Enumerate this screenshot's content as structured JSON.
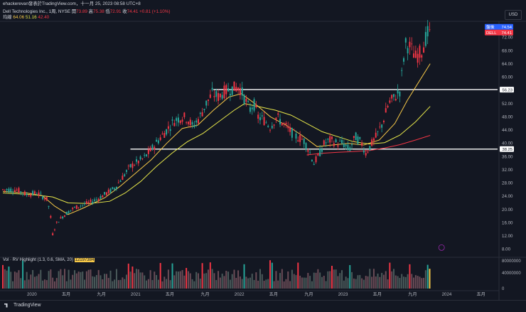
{
  "header": {
    "author_line": "ehackerevan發表於TradingView.com，十一月 25, 2023 08:58 UTC+8",
    "symbol_line": "Dell Technologies Inc., 1周, NYSE",
    "ohlc": {
      "open_label": "開",
      "open": "73.89",
      "high_label": "高",
      "high": "75.38",
      "low_label": "低",
      "low": "72.91",
      "close_label": "收",
      "close": "74.41",
      "change": "+0.81 (+1.10%)"
    },
    "ma_label": "均線",
    "ma_values": [
      "64.06",
      "51.16",
      "42.40"
    ]
  },
  "currency": "USD",
  "price_tags": [
    {
      "label": "盤後",
      "value": "74.54",
      "color": "#2962ff"
    },
    {
      "label": "DELL",
      "value": "74.41",
      "color": "#f23645"
    },
    {
      "value": "56.23",
      "color": "#ffffff"
    },
    {
      "value": "38.25",
      "color": "#ffffff"
    }
  ],
  "volume_label": {
    "text": "Vol · RV Highlight (1.3, 0.6, SMA, 20)",
    "value": "12197384"
  },
  "footer": {
    "logo_text": "TradingView"
  },
  "colors": {
    "up": "#f23645",
    "down": "#26a69a",
    "ma_fast": "#f7c948",
    "ma_mid": "#e8e84a",
    "ma_slow": "#f23645",
    "level_line": "#ffffff",
    "bg": "#131722"
  },
  "chart_data": {
    "type": "candlestick",
    "symbol": "DELL",
    "interval": "1W",
    "ylim": [
      6,
      76
    ],
    "y_ticks": [
      "72.00",
      "68.00",
      "64.00",
      "60.00",
      "56.00",
      "52.00",
      "48.00",
      "44.00",
      "40.00",
      "36.00",
      "32.00",
      "28.00",
      "24.00",
      "20.00",
      "16.00",
      "12.00",
      "8.00"
    ],
    "y_tick_values": [
      72,
      68,
      64,
      60,
      56,
      52,
      48,
      44,
      40,
      36,
      32,
      28,
      24,
      20,
      16,
      12,
      8
    ],
    "x_ticks": [
      "2020",
      "五月",
      "九月",
      "2021",
      "五月",
      "九月",
      "2022",
      "五月",
      "九月",
      "2023",
      "五月",
      "九月",
      "2024",
      "五月"
    ],
    "x_tick_years": [
      2020.0,
      2020.33,
      2020.67,
      2021.0,
      2021.33,
      2021.67,
      2022.0,
      2022.33,
      2022.67,
      2023.0,
      2023.33,
      2023.67,
      2024.0,
      2024.33
    ],
    "xlim": [
      2019.72,
      2024.49
    ],
    "horizontal_levels": [
      56.23,
      38.25
    ],
    "price_path": [
      [
        2019.72,
        26
      ],
      [
        2019.85,
        26
      ],
      [
        2019.95,
        24.5
      ],
      [
        2020.05,
        25
      ],
      [
        2020.1,
        24
      ],
      [
        2020.15,
        23
      ],
      [
        2020.18,
        18
      ],
      [
        2020.2,
        12.5
      ],
      [
        2020.24,
        16
      ],
      [
        2020.3,
        18
      ],
      [
        2020.38,
        20
      ],
      [
        2020.45,
        21
      ],
      [
        2020.55,
        22
      ],
      [
        2020.62,
        23
      ],
      [
        2020.7,
        24.5
      ],
      [
        2020.8,
        26.5
      ],
      [
        2020.88,
        30
      ],
      [
        2020.95,
        33
      ],
      [
        2021.0,
        34
      ],
      [
        2021.08,
        35.5
      ],
      [
        2021.15,
        38
      ],
      [
        2021.22,
        41
      ],
      [
        2021.3,
        44
      ],
      [
        2021.38,
        47
      ],
      [
        2021.45,
        48
      ],
      [
        2021.5,
        47.5
      ],
      [
        2021.55,
        45
      ],
      [
        2021.62,
        48
      ],
      [
        2021.68,
        52
      ],
      [
        2021.74,
        55
      ],
      [
        2021.8,
        54
      ],
      [
        2021.85,
        55.5
      ],
      [
        2021.92,
        56.5
      ],
      [
        2022.0,
        57
      ],
      [
        2022.03,
        55
      ],
      [
        2022.06,
        53
      ],
      [
        2022.1,
        50
      ],
      [
        2022.14,
        52
      ],
      [
        2022.18,
        48
      ],
      [
        2022.24,
        47
      ],
      [
        2022.3,
        45
      ],
      [
        2022.36,
        48
      ],
      [
        2022.42,
        46
      ],
      [
        2022.48,
        44
      ],
      [
        2022.55,
        42
      ],
      [
        2022.62,
        41
      ],
      [
        2022.67,
        38
      ],
      [
        2022.72,
        34
      ],
      [
        2022.76,
        36
      ],
      [
        2022.82,
        40
      ],
      [
        2022.88,
        41
      ],
      [
        2022.94,
        40
      ],
      [
        2023.0,
        40
      ],
      [
        2023.06,
        38
      ],
      [
        2023.12,
        42
      ],
      [
        2023.18,
        40
      ],
      [
        2023.22,
        37
      ],
      [
        2023.26,
        39
      ],
      [
        2023.32,
        42
      ],
      [
        2023.38,
        46
      ],
      [
        2023.44,
        52
      ],
      [
        2023.5,
        54
      ],
      [
        2023.55,
        56
      ],
      [
        2023.6,
        70
      ],
      [
        2023.65,
        69
      ],
      [
        2023.7,
        66
      ],
      [
        2023.76,
        68
      ],
      [
        2023.8,
        72
      ],
      [
        2023.84,
        74.41
      ]
    ],
    "ma_fast_path": [
      [
        2019.72,
        25.5
      ],
      [
        2019.95,
        25
      ],
      [
        2020.1,
        24.2
      ],
      [
        2020.22,
        21
      ],
      [
        2020.35,
        18.5
      ],
      [
        2020.5,
        20.5
      ],
      [
        2020.7,
        23.5
      ],
      [
        2020.85,
        27
      ],
      [
        2021.0,
        31
      ],
      [
        2021.15,
        35
      ],
      [
        2021.3,
        40
      ],
      [
        2021.45,
        44.5
      ],
      [
        2021.6,
        45.5
      ],
      [
        2021.75,
        50
      ],
      [
        2021.9,
        54
      ],
      [
        2022.02,
        55
      ],
      [
        2022.15,
        52
      ],
      [
        2022.3,
        48
      ],
      [
        2022.45,
        45.5
      ],
      [
        2022.6,
        42.5
      ],
      [
        2022.75,
        39
      ],
      [
        2022.9,
        39.5
      ],
      [
        2023.05,
        40
      ],
      [
        2023.2,
        39.5
      ],
      [
        2023.35,
        41
      ],
      [
        2023.5,
        46
      ],
      [
        2023.62,
        53
      ],
      [
        2023.72,
        58
      ],
      [
        2023.84,
        64.06
      ]
    ],
    "ma_mid_path": [
      [
        2019.72,
        25
      ],
      [
        2020.0,
        24.5
      ],
      [
        2020.2,
        23.8
      ],
      [
        2020.35,
        22
      ],
      [
        2020.55,
        21.8
      ],
      [
        2020.75,
        22.5
      ],
      [
        2020.9,
        25
      ],
      [
        2021.05,
        28.5
      ],
      [
        2021.2,
        33
      ],
      [
        2021.35,
        37
      ],
      [
        2021.5,
        40.5
      ],
      [
        2021.65,
        43
      ],
      [
        2021.8,
        46.5
      ],
      [
        2021.95,
        50
      ],
      [
        2022.05,
        52
      ],
      [
        2022.2,
        51
      ],
      [
        2022.35,
        50
      ],
      [
        2022.5,
        48.5
      ],
      [
        2022.65,
        46
      ],
      [
        2022.8,
        43.5
      ],
      [
        2022.95,
        42
      ],
      [
        2023.1,
        40.5
      ],
      [
        2023.25,
        39.8
      ],
      [
        2023.4,
        40.2
      ],
      [
        2023.55,
        42.5
      ],
      [
        2023.7,
        46.5
      ],
      [
        2023.84,
        51.16
      ]
    ],
    "ma_slow_path": [
      [
        2022.65,
        36.5
      ],
      [
        2022.8,
        37
      ],
      [
        2022.95,
        37.3
      ],
      [
        2023.1,
        37.5
      ],
      [
        2023.25,
        37.8
      ],
      [
        2023.4,
        38.6
      ],
      [
        2023.55,
        39.6
      ],
      [
        2023.7,
        41
      ],
      [
        2023.84,
        42.4
      ]
    ],
    "volume_ylim": [
      0,
      60000000
    ],
    "volume_ticks": [
      "80000000",
      "40000000",
      "0"
    ],
    "last_volume": 12197384
  }
}
